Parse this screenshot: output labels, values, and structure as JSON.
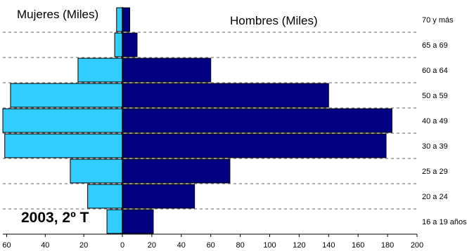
{
  "chart_data": {
    "type": "bar",
    "orientation": "horizontal",
    "layout": "population-pyramid",
    "categories": [
      "16 a 19 años",
      "20 a 24",
      "25 a 29",
      "30 a 39",
      "40 a 49",
      "50 a 59",
      "60 a 64",
      "65 a 69",
      "70 y más"
    ],
    "series": [
      {
        "name": "Mujeres (Miles)",
        "color": "#33ccff",
        "values": [
          8,
          18,
          27,
          61,
          62,
          58,
          23,
          4,
          3
        ]
      },
      {
        "name": "Hombres (Miles)",
        "color": "#000080",
        "values": [
          21,
          49,
          73,
          179,
          183,
          140,
          60,
          10,
          5
        ]
      }
    ],
    "x_ticks_women": [
      "60",
      "40",
      "20"
    ],
    "x_ticks_men": [
      "0",
      "20",
      "40",
      "60",
      "80",
      "100",
      "120",
      "140",
      "160",
      "180",
      "200"
    ],
    "xlim_women": [
      0,
      60
    ],
    "xlim_men": [
      0,
      200
    ],
    "grid": "horizontal-dashed",
    "annotation": "2003, 2º T"
  }
}
